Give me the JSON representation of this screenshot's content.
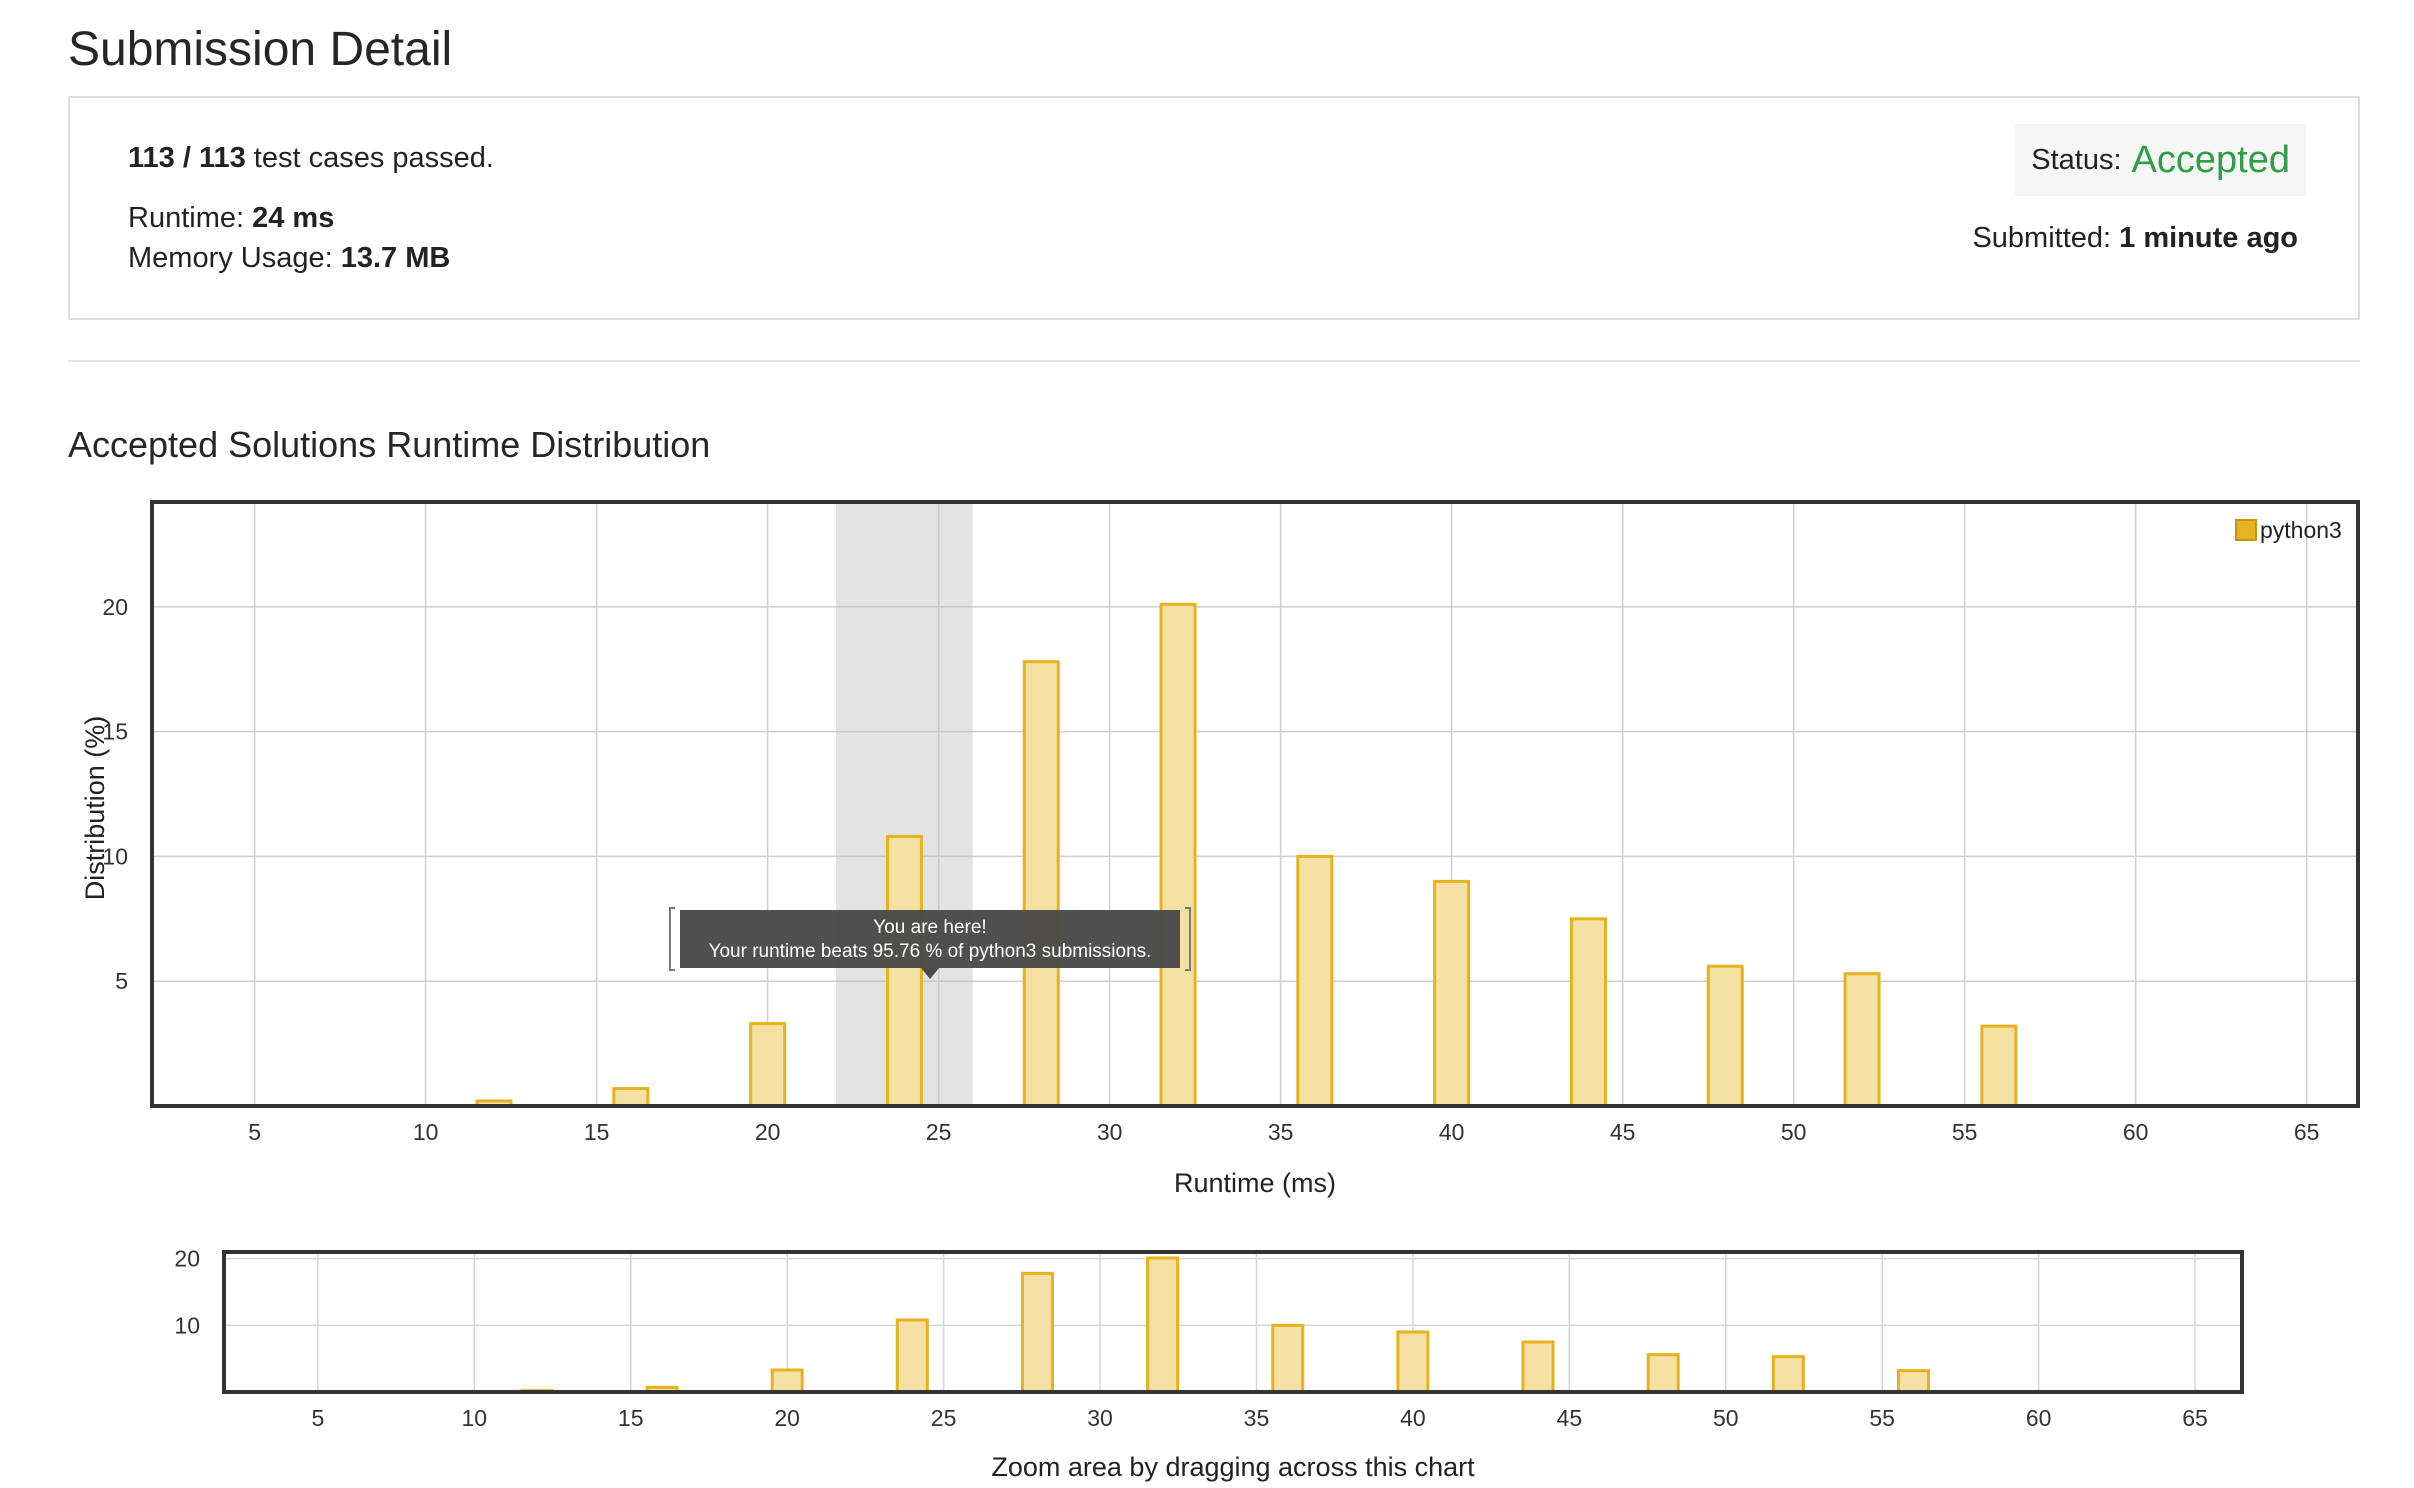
{
  "page": {
    "title": "Submission Detail"
  },
  "summary": {
    "cases_count": "113 / 113",
    "cases_text": " test cases passed.",
    "runtime_label": "Runtime: ",
    "runtime_value": "24 ms",
    "memory_label": "Memory Usage: ",
    "memory_value": "13.7 MB",
    "status_label": "Status: ",
    "status_value": "Accepted",
    "submitted_label": "Submitted: ",
    "submitted_value": "1 minute ago",
    "status_color": "#2f9e44"
  },
  "section": {
    "title": "Accepted Solutions Runtime Distribution"
  },
  "chart_data": {
    "type": "bar",
    "series": [
      {
        "name": "python3",
        "color": "#e6b21e",
        "fill": "#f5e1a4",
        "x": [
          12,
          16,
          20,
          24,
          28,
          32,
          36,
          40,
          44,
          48,
          52,
          56
        ],
        "values": [
          0.2,
          0.7,
          3.3,
          10.8,
          17.8,
          20.1,
          10.0,
          9.0,
          7.5,
          5.6,
          5.3,
          3.2
        ]
      }
    ],
    "xlabel": "Runtime (ms)",
    "ylabel": "Distribution (%)",
    "xlim": [
      2,
      66.5
    ],
    "ylim": [
      0,
      24.2
    ],
    "xticks": [
      5,
      10,
      15,
      20,
      25,
      30,
      35,
      40,
      45,
      50,
      55,
      60,
      65
    ],
    "yticks": [
      5,
      10,
      15,
      20
    ],
    "grid": true,
    "legend": "top-right",
    "highlight_range": [
      22,
      26
    ],
    "tooltip": {
      "line1": "You are here!",
      "line2": "Your runtime beats 95.76 % of python3 submissions."
    },
    "navigator": {
      "yticks": [
        10,
        20
      ],
      "ylim": [
        0,
        21
      ],
      "caption": "Zoom area by dragging across this chart"
    }
  }
}
